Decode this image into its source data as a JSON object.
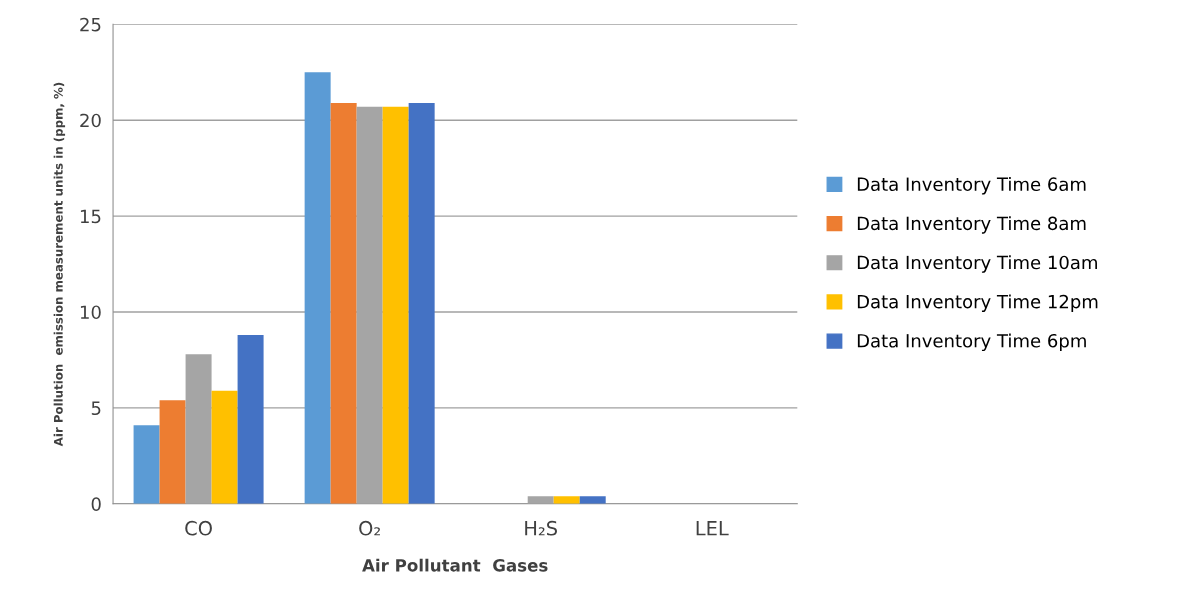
{
  "chart_data": {
    "type": "bar",
    "xlabel": "Air Pollutant  Gases",
    "ylabel": "Air Pollution  emission measurement units in (ppm, %)",
    "categories": [
      "CO",
      "O₂",
      "H₂S",
      "LEL"
    ],
    "series": [
      {
        "name": "Data Inventory Time 6am",
        "color": "#5b9bd5",
        "values": [
          4.1,
          22.5,
          0,
          0
        ]
      },
      {
        "name": "Data Inventory Time 8am",
        "color": "#ed7d31",
        "values": [
          5.4,
          20.9,
          0,
          0
        ]
      },
      {
        "name": "Data Inventory Time 10am",
        "color": "#a5a5a5",
        "values": [
          7.8,
          20.7,
          0.4,
          0
        ]
      },
      {
        "name": "Data Inventory Time 12pm",
        "color": "#ffc000",
        "values": [
          5.9,
          20.7,
          0.4,
          0
        ]
      },
      {
        "name": "Data Inventory Time 6pm",
        "color": "#4472c4",
        "values": [
          8.8,
          20.9,
          0.4,
          0
        ]
      }
    ],
    "ylim": [
      0,
      25
    ],
    "yticks": [
      0,
      5,
      10,
      15,
      20,
      25
    ],
    "grid": "y",
    "legend": "right"
  }
}
